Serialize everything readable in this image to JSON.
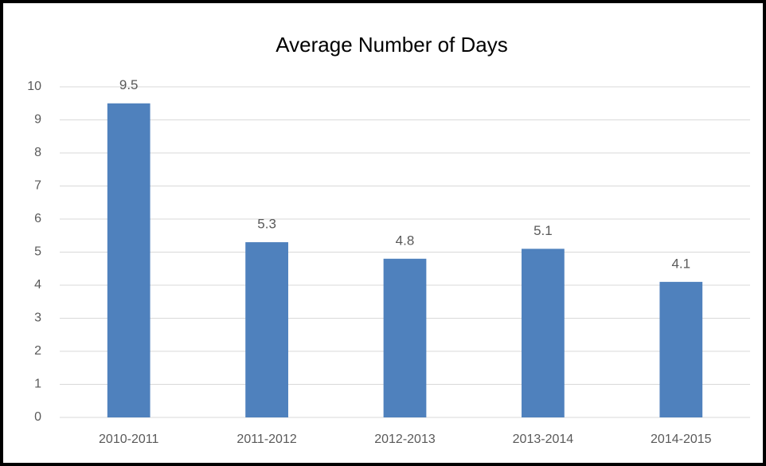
{
  "chart_data": {
    "type": "bar",
    "title": "Average Number of Days",
    "categories": [
      "2010-2011",
      "2011-2012",
      "2012-2013",
      "2013-2014",
      "2014-2015"
    ],
    "values": [
      9.5,
      5.3,
      4.8,
      5.1,
      4.1
    ],
    "color": "#4f81bd",
    "ylim": [
      0,
      10
    ],
    "yticks": [
      0,
      1,
      2,
      3,
      4,
      5,
      6,
      7,
      8,
      9,
      10
    ],
    "grid": true,
    "data_labels": true
  }
}
